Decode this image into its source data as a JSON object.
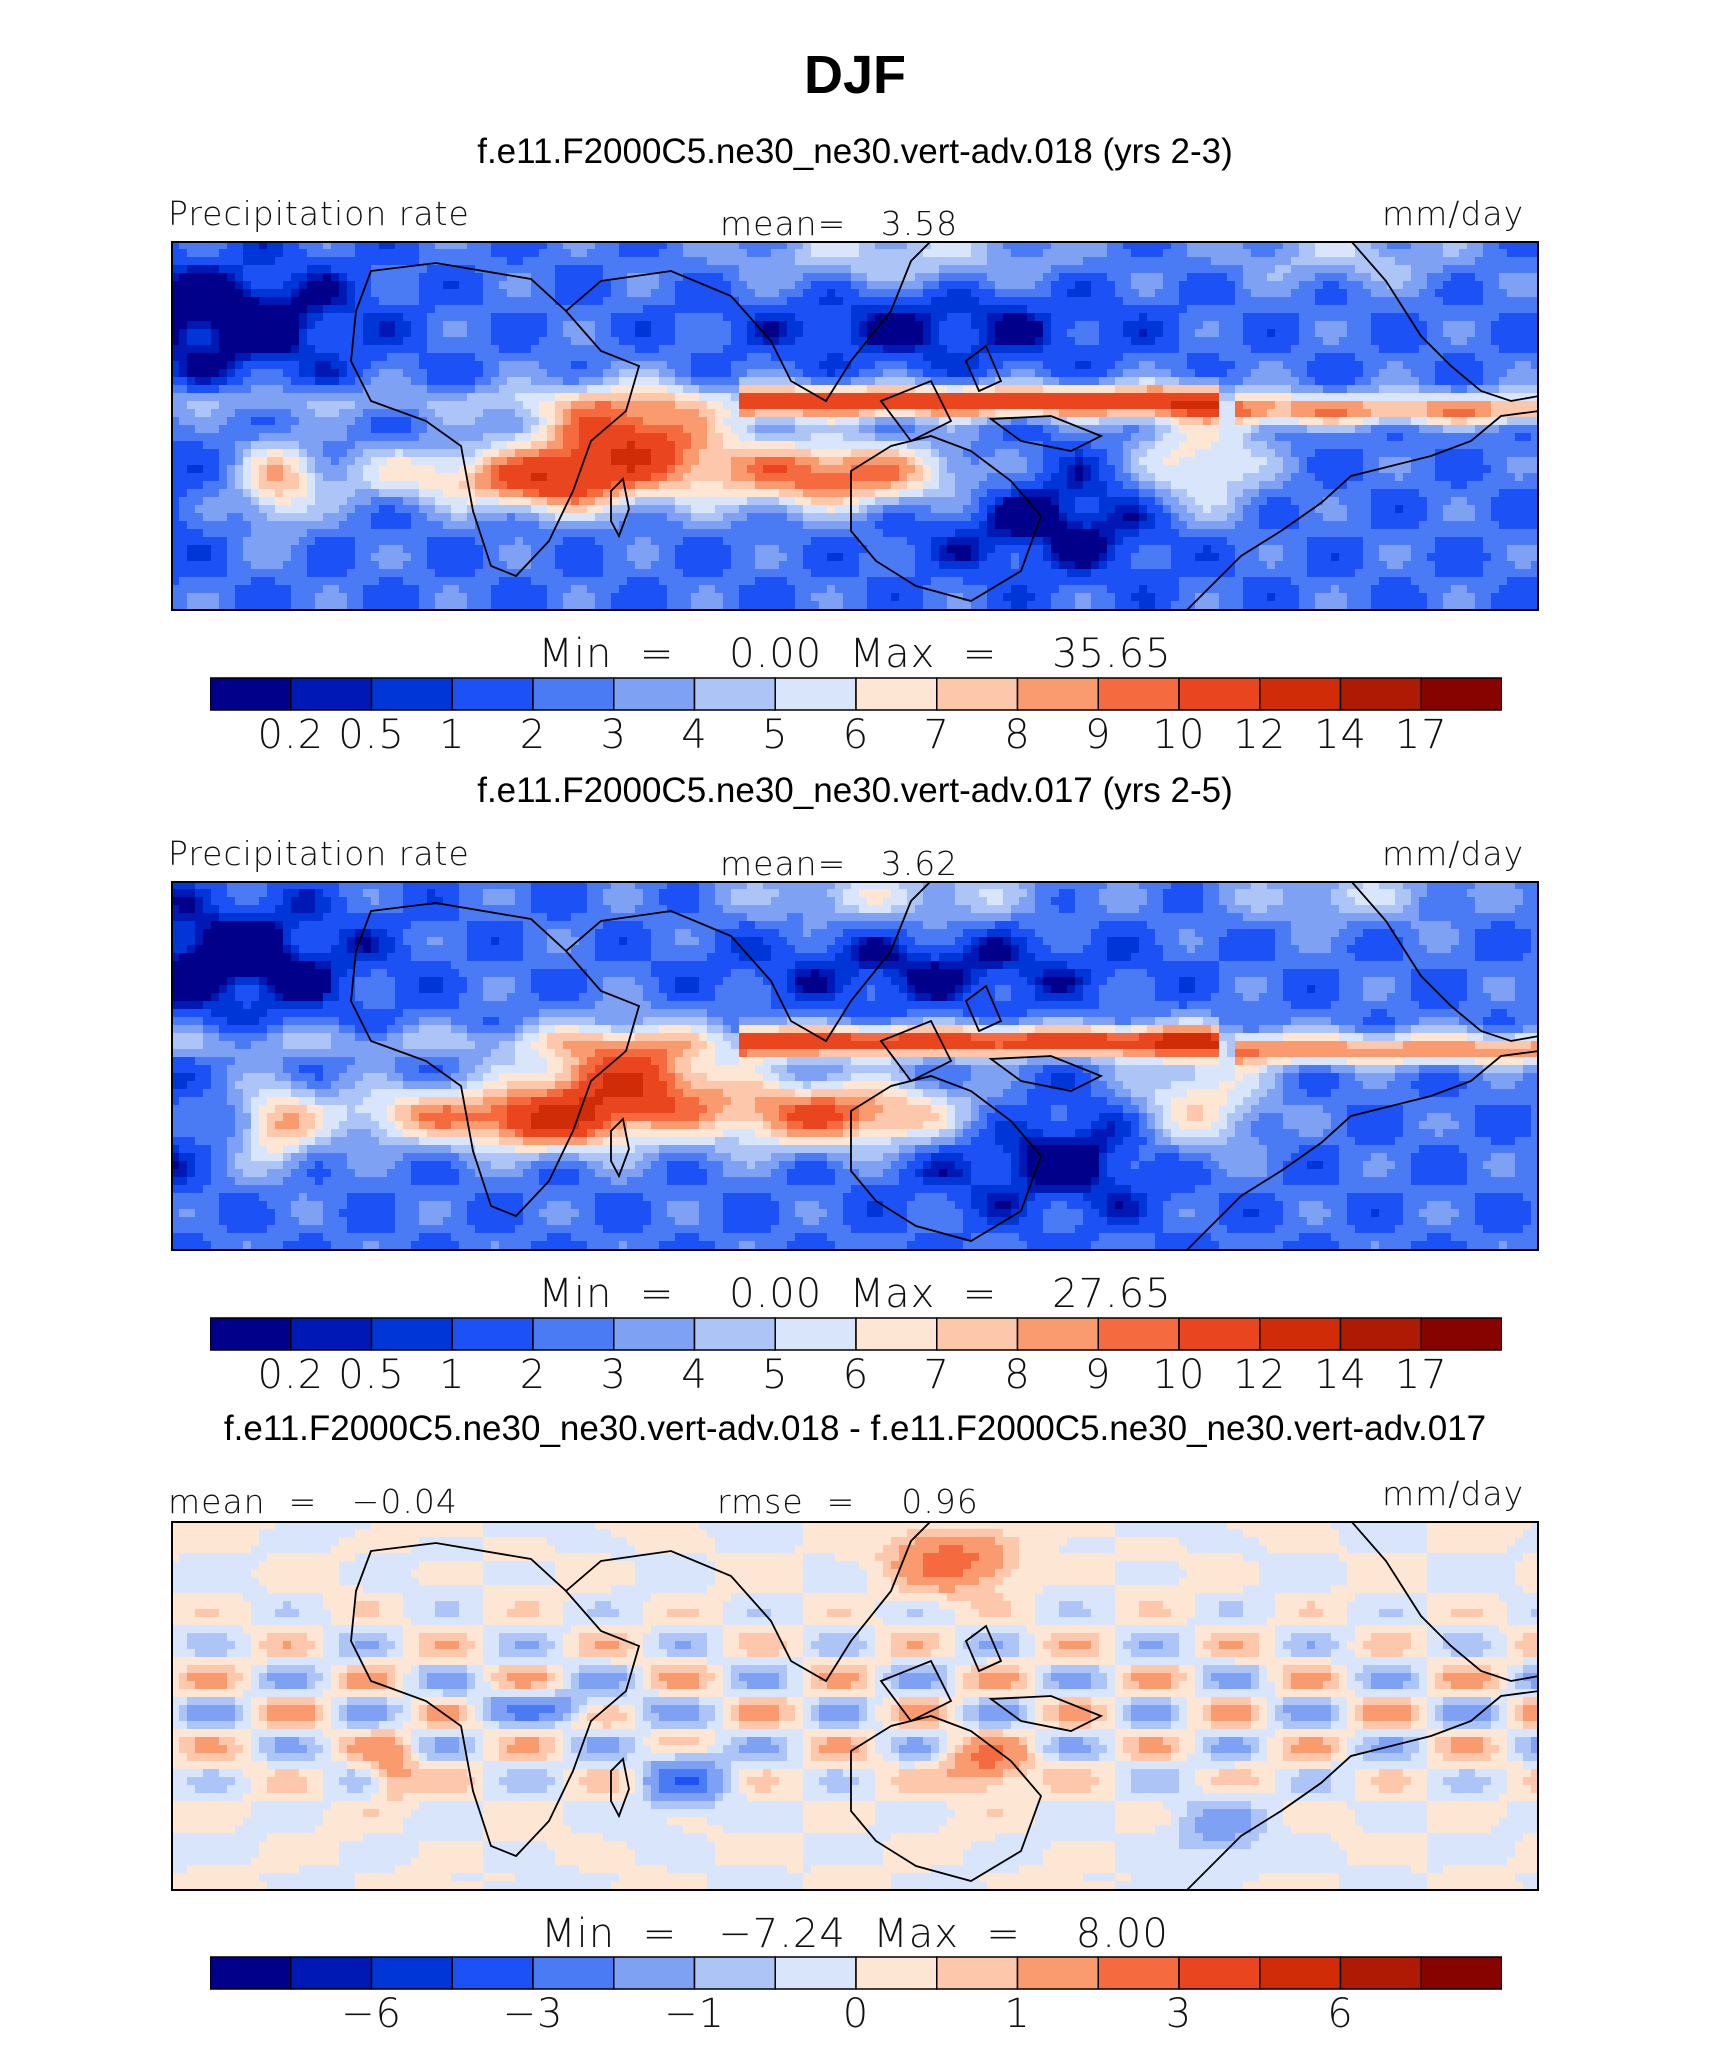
{
  "title": "DJF",
  "panels": [
    {
      "case_title": "f.e11.F2000C5.ne30_ne30.vert-adv.018 (yrs 2-3)",
      "left_label": "Precipitation rate",
      "center_label": "mean=   3.58",
      "right_label": "mm/day",
      "min_max": "Min  =    0.00  Max  =    35.65",
      "colorbar_ticks": [
        "0.2",
        "0.5",
        "1",
        "2",
        "3",
        "4",
        "5",
        "6",
        "7",
        "8",
        "9",
        "10",
        "12",
        "14",
        "17"
      ]
    },
    {
      "case_title": "f.e11.F2000C5.ne30_ne30.vert-adv.017 (yrs 2-5)",
      "left_label": "Precipitation rate",
      "center_label": "mean=   3.62",
      "right_label": "mm/day",
      "min_max": "Min  =    0.00  Max  =    27.65",
      "colorbar_ticks": [
        "0.2",
        "0.5",
        "1",
        "2",
        "3",
        "4",
        "5",
        "6",
        "7",
        "8",
        "9",
        "10",
        "12",
        "14",
        "17"
      ]
    },
    {
      "case_title": "f.e11.F2000C5.ne30_ne30.vert-adv.018 - f.e11.F2000C5.ne30_ne30.vert-adv.017",
      "left_label": "mean  =   −0.04",
      "center_label": "rmse  =    0.96",
      "right_label": "mm/day",
      "min_max": "Min  =   −7.24  Max  =    8.00",
      "colorbar_ticks": [
        "−6",
        "−3",
        "−1",
        "0",
        "1",
        "3",
        "6"
      ]
    }
  ],
  "chart_data": [
    {
      "type": "heatmap",
      "title": "f.e11.F2000C5.ne30_ne30.vert-adv.018 (yrs 2-3)",
      "variable": "Precipitation rate",
      "units": "mm/day",
      "mean": 3.58,
      "min": 0.0,
      "max": 35.65,
      "contour_levels": [
        0.2,
        0.5,
        1,
        2,
        3,
        4,
        5,
        6,
        7,
        8,
        9,
        10,
        12,
        14,
        17
      ]
    },
    {
      "type": "heatmap",
      "title": "f.e11.F2000C5.ne30_ne30.vert-adv.017 (yrs 2-5)",
      "variable": "Precipitation rate",
      "units": "mm/day",
      "mean": 3.62,
      "min": 0.0,
      "max": 27.65,
      "contour_levels": [
        0.2,
        0.5,
        1,
        2,
        3,
        4,
        5,
        6,
        7,
        8,
        9,
        10,
        12,
        14,
        17
      ]
    },
    {
      "type": "heatmap",
      "title": "f.e11.F2000C5.ne30_ne30.vert-adv.018 - f.e11.F2000C5.ne30_ne30.vert-adv.017",
      "units": "mm/day",
      "mean": -0.04,
      "rmse": 0.96,
      "min": -7.24,
      "max": 8.0,
      "contour_levels": [
        -8,
        -6,
        -4,
        -3,
        -2,
        -1,
        -0.5,
        0,
        0.5,
        1,
        2,
        3,
        4,
        6,
        8
      ]
    }
  ],
  "colormap": [
    "#00008a",
    "#0019b4",
    "#0035d8",
    "#1c52f5",
    "#4a7bf5",
    "#7ea1f4",
    "#adc4f7",
    "#d8e5fa",
    "#fde6d4",
    "#fcc7ab",
    "#f99a6f",
    "#f56b3f",
    "#e9461f",
    "#d12c08",
    "#af1a04",
    "#870300"
  ]
}
